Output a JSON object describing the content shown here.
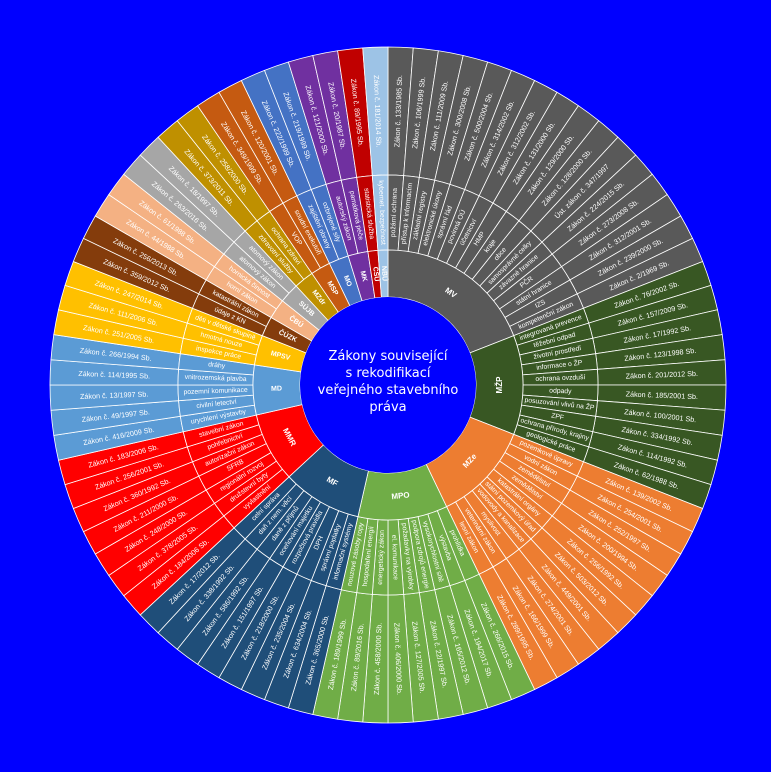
{
  "chart_data": {
    "type": "sunburst",
    "title": [
      "Zákony související",
      "s rekodifikací",
      "veřejného stavebního",
      "práva"
    ],
    "colors": {
      "background": "#0000ff",
      "center": "#0000ff",
      "MV": "#595959",
      "MŽP": "#385723",
      "MZe": "#ed7d31",
      "MPO": "#70ad47",
      "MF": "#1f4e79",
      "MMR": "#ff0000",
      "MD": "#5b9bd5",
      "MPSV": "#ffc000",
      "ČÚZK": "#843c0c",
      "ČBÚ": "#f4b183",
      "SÚJB": "#a6a6a6",
      "MZdr": "#bf9000",
      "MSP": "#c55a11",
      "MO": "#4472c4",
      "MK": "#7030a0",
      "ČSÚ": "#c00000",
      "NBÚ": "#9dc3e6"
    },
    "ministries": [
      {
        "name": "MV",
        "topics": [
          {
            "name": "požární ochrana",
            "laws": [
              "Zákon č. 133/1985 Sb."
            ]
          },
          {
            "name": "přístup k informacím",
            "laws": [
              "Zákon č. 106/1999 Sb."
            ]
          },
          {
            "name": "základní registry",
            "laws": [
              "Zákon č. 111/2009 Sb."
            ]
          },
          {
            "name": "elektronické úkony",
            "laws": [
              "Zákon č. 300/2008 Sb."
            ]
          },
          {
            "name": "správní řád",
            "laws": [
              "Zákon č. 500/2004 Sb."
            ]
          },
          {
            "name": "povinná OÚ",
            "laws": [
              "Zákon č. 314/2002 Sb."
            ]
          },
          {
            "name": "účetnictví",
            "laws": [
              "Zákon č. 312/2002 Sb."
            ]
          },
          {
            "name": "HMP",
            "laws": [
              "Zákon č. 131/2000 Sb."
            ]
          },
          {
            "name": "kraje",
            "laws": [
              "Zákon č. 129/2000 Sb."
            ]
          },
          {
            "name": "obce",
            "laws": [
              "Zákon č. 128/2000 Sb."
            ]
          },
          {
            "name": "samosprávné celky",
            "laws": [
              "Úst. zákon č. 347/1997"
            ]
          },
          {
            "name": "závazné hranice",
            "laws": [
              "Zákon č. 224/2015 Sb."
            ]
          },
          {
            "name": "PČR",
            "laws": [
              "Zákon č. 273/2008 Sb."
            ]
          },
          {
            "name": "státní hranice",
            "laws": [
              "Zákon č. 312/2001 Sb."
            ]
          },
          {
            "name": "IZS",
            "laws": [
              "Zákon č. 239/2000 Sb."
            ]
          },
          {
            "name": "kompetenční zákon",
            "laws": [
              "Zákon č. 2/1969 Sb."
            ]
          }
        ]
      },
      {
        "name": "MŽP",
        "topics": [
          {
            "name": "integrovaná prevence",
            "laws": [
              "Zákon č. 76/2002 Sb."
            ]
          },
          {
            "name": "těžební odpad",
            "laws": [
              "Zákon č. 157/2009 Sb."
            ]
          },
          {
            "name": "životní prostředí",
            "laws": [
              "Zákon č. 17/1992 Sb."
            ]
          },
          {
            "name": "informace o ŽP",
            "laws": [
              "Zákon č. 123/1998 Sb."
            ]
          },
          {
            "name": "ochrana ovzduší",
            "laws": [
              "Zákon č. 201/2012 Sb."
            ]
          },
          {
            "name": "odpady",
            "laws": [
              "Zákon č. 185/2001 Sb."
            ]
          },
          {
            "name": "posuzování vlivů na ŽP",
            "laws": [
              "Zákon č. 100/2001 Sb."
            ]
          },
          {
            "name": "ZPF",
            "laws": [
              "Zákon č. 334/1992 Sb."
            ]
          },
          {
            "name": "ochrana přírody, krajiny",
            "laws": [
              "Zákon č. 114/1992 Sb."
            ]
          },
          {
            "name": "geologické práce",
            "laws": [
              "Zákon č. 62/1988 Sb."
            ]
          }
        ]
      },
      {
        "name": "MZe",
        "topics": [
          {
            "name": "pozemkové úpravy",
            "laws": [
              "Zákon č. 139/2002 Sb."
            ]
          },
          {
            "name": "vodní zákon",
            "laws": [
              "Zákon č. 254/2001 Sb."
            ]
          },
          {
            "name": "zemědělství",
            "laws": [
              "Zákon č. 252/1997 Sb."
            ]
          },
          {
            "name": "zemědělství",
            "laws": [
              "Zákon č. 200/1994 Sb."
            ]
          },
          {
            "name": "katastrální orgány",
            "laws": [
              "Zákon č. 256/1992 Sb."
            ]
          },
          {
            "name": "státní pozemkový úřad",
            "laws": [
              "Zákon č. 503/2012 Sb."
            ]
          },
          {
            "name": "vodovody a kanalizace",
            "laws": [
              "Zákon č. 449/2001 Sb."
            ]
          },
          {
            "name": "myslivost",
            "laws": [
              "Zákon č. 274/2001 Sb."
            ]
          },
          {
            "name": "veterinární zákon",
            "laws": [
              "Zákon č. 166/1999 Sb."
            ]
          },
          {
            "name": "lesní zákon",
            "laws": [
              "Zákon č. 289/1995 Sb."
            ]
          }
        ]
      },
      {
        "name": "MPO",
        "topics": [
          {
            "name": "prohlídka",
            "laws": [
              "Zákon č. 266/2015 Sb."
            ]
          },
          {
            "name": "výstavba",
            "laws": [
              "Zákon č. 194/2017 Sb."
            ]
          },
          {
            "name": "vysokorychlostní sítě",
            "laws": [
              "Zákon č. 165/2012 Sb."
            ]
          },
          {
            "name": "podpora zdrojů energie",
            "laws": [
              "Zákon č. 22/1997 Sb."
            ]
          },
          {
            "name": "požadavky na výrobky",
            "laws": [
              "Zákon č. 127/2005 Sb."
            ]
          },
          {
            "name": "el. komunikace",
            "laws": [
              "Zákon č. 406/2000 Sb."
            ]
          },
          {
            "name": "energetický zákon",
            "laws": [
              "Zákon č. 458/2000 Sb."
            ]
          },
          {
            "name": "hospodaření energií",
            "laws": [
              "Zákon č. 89/2016 Sb."
            ]
          },
          {
            "name": "nouzové zásoby ropy",
            "laws": [
              "Zákon č. 189/1999 Sb."
            ]
          }
        ]
      },
      {
        "name": "MF",
        "topics": [
          {
            "name": "informační systémy",
            "laws": [
              "Zákon č. 365/2000 Sb."
            ]
          },
          {
            "name": "správní poplatky",
            "laws": [
              "Zákon č. 634/2004 Sb."
            ]
          },
          {
            "name": "DPH",
            "laws": [
              "Zákon č. 235/2004 Sb."
            ]
          },
          {
            "name": "rozpočtová pravidla",
            "laws": [
              "Zákon č. 218/2000 Sb."
            ]
          },
          {
            "name": "oceňování majetku",
            "laws": [
              "Zákon č. 151/1997 Sb."
            ]
          },
          {
            "name": "daně z příjmů",
            "laws": [
              "Zákon č. 586/1992 Sb."
            ]
          },
          {
            "name": "daň z nem. věcí",
            "laws": [
              "Zákon č. 338/1992 Sb."
            ]
          },
          {
            "name": "celní správa",
            "laws": [
              "Zákon č. 17/2012 Sb."
            ]
          }
        ]
      },
      {
        "name": "MMR",
        "topics": [
          {
            "name": "vyvlastnění",
            "laws": [
              "Zákon č. 184/2006 Sb."
            ]
          },
          {
            "name": "družstevní byty",
            "laws": [
              "Zákon č. 378/2005 Sb."
            ]
          },
          {
            "name": "regionální rozvoj",
            "laws": [
              "Zákon č. 248/2000 Sb."
            ]
          },
          {
            "name": "SFRB",
            "laws": [
              "Zákon č. 211/2000 Sb."
            ]
          },
          {
            "name": "autorizační zákon",
            "laws": [
              "Zákon č. 360/1992 Sb."
            ]
          },
          {
            "name": "pohřebnictví",
            "laws": [
              "Zákon č. 256/2001 Sb."
            ]
          },
          {
            "name": "stavební zákon",
            "laws": [
              "Zákon č. 183/2006 Sb."
            ]
          }
        ]
      },
      {
        "name": "MD",
        "topics": [
          {
            "name": "urychlení výstavby",
            "laws": [
              "Zákon č. 416/2009 Sb."
            ]
          },
          {
            "name": "civilní letectví",
            "laws": [
              "Zákon č. 49/1997 Sb."
            ]
          },
          {
            "name": "pozemní komunikace",
            "laws": [
              "Zákon č. 13/1997 Sb."
            ]
          },
          {
            "name": "vnitrozemská plavba",
            "laws": [
              "Zákon č. 114/1995 Sb."
            ]
          },
          {
            "name": "dráhy",
            "laws": [
              "Zákon č. 266/1994 Sb."
            ]
          }
        ]
      },
      {
        "name": "MPSV",
        "topics": [
          {
            "name": "inspekce práce",
            "laws": [
              "Zákon č. 251/2005 Sb."
            ]
          },
          {
            "name": "hmotná nouze",
            "laws": [
              "Zákon č. 111/2006 Sb."
            ]
          },
          {
            "name": "děti v dětské skupině",
            "laws": [
              "Zákon č. 247/2014 Sb."
            ]
          }
        ]
      },
      {
        "name": "ČÚZK",
        "topics": [
          {
            "name": "údaje z KN",
            "laws": [
              "Zákon č. 359/2012 Sb."
            ]
          },
          {
            "name": "katastrální zákon",
            "laws": [
              "Zákon č. 256/2013 Sb."
            ]
          }
        ]
      },
      {
        "name": "ČBÚ",
        "topics": [
          {
            "name": "horní zákon",
            "laws": [
              "Zákon č. 44/1988 Sb."
            ]
          },
          {
            "name": "hornická činnost",
            "laws": [
              "Zákon č. 61/1988 Sb."
            ]
          }
        ]
      },
      {
        "name": "SÚJB",
        "topics": [
          {
            "name": "atomový zákon",
            "laws": [
              "Zákon č. 263/2016 Sb."
            ]
          },
          {
            "name": "atomový zákon",
            "laws": [
              "Zákon č. 18/1997 Sb."
            ]
          }
        ]
      },
      {
        "name": "MZdr",
        "topics": [
          {
            "name": "zdravotní služby",
            "laws": [
              "Zákon č. 373/2011 Sb."
            ]
          },
          {
            "name": "ochrana zdraví",
            "laws": [
              "Zákon č. 258/2000 Sb."
            ]
          }
        ]
      },
      {
        "name": "MSP",
        "topics": [
          {
            "name": "VOP",
            "laws": [
              "Zákon č. 349/1999 Sb."
            ]
          },
          {
            "name": "soudní exekutoři",
            "laws": [
              "Zákon č. 120/2001 Sb."
            ]
          }
        ]
      },
      {
        "name": "MO",
        "topics": [
          {
            "name": "zajištění obrany",
            "laws": [
              "Zákon č. 222/1999 Sb."
            ]
          },
          {
            "name": "ozbrojené síly",
            "laws": [
              "Zákon č. 219/1999 Sb."
            ]
          }
        ]
      },
      {
        "name": "MK",
        "topics": [
          {
            "name": "autorský zákon",
            "laws": [
              "Zákon č. 121/2000 Sb."
            ]
          },
          {
            "name": "památková péče",
            "laws": [
              "Zákon č. 20/1987 Sb."
            ]
          }
        ]
      },
      {
        "name": "ČSÚ",
        "topics": [
          {
            "name": "statistická služba",
            "laws": [
              "Zákon č. 89/1995 Sb."
            ]
          }
        ]
      },
      {
        "name": "NBÚ",
        "topics": [
          {
            "name": "kybernet. bezpečnost",
            "laws": [
              "Zákon č. 181/2014 Sb."
            ]
          }
        ]
      }
    ]
  }
}
